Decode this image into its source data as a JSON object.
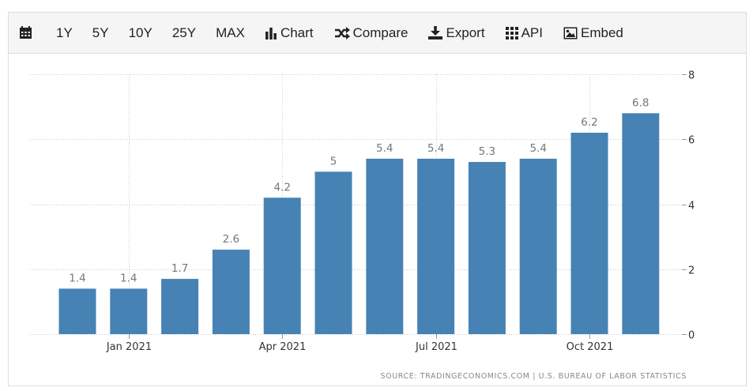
{
  "toolbar": {
    "ranges": [
      "1Y",
      "5Y",
      "10Y",
      "25Y",
      "MAX"
    ],
    "chart_label": "Chart",
    "compare_label": "Compare",
    "export_label": "Export",
    "api_label": "API",
    "embed_label": "Embed",
    "icons": {
      "calendar": "calendar-icon",
      "chart": "bar-chart-icon",
      "compare": "shuffle-icon",
      "export": "download-icon",
      "api": "grid-icon",
      "embed": "image-icon"
    }
  },
  "source": "SOURCE: TRADINGECONOMICS.COM | U.S. BUREAU OF LABOR STATISTICS",
  "colors": {
    "bar": "#4682b4",
    "grid": "#cccccc",
    "label": "#777777"
  },
  "chart_data": {
    "type": "bar",
    "x_tick_labels": [
      "Jan 2021",
      "Apr 2021",
      "Jul 2021",
      "Oct 2021"
    ],
    "values": [
      1.4,
      1.4,
      1.7,
      2.6,
      4.2,
      5,
      5.4,
      5.4,
      5.3,
      5.4,
      6.2,
      6.8
    ],
    "data_labels": [
      "1.4",
      "1.4",
      "1.7",
      "2.6",
      "4.2",
      "5",
      "5.4",
      "5.4",
      "5.3",
      "5.4",
      "6.2",
      "6.8"
    ],
    "ylim": [
      0,
      8
    ],
    "y_ticks": [
      0,
      2,
      4,
      6,
      8
    ],
    "y_axis_side": "right",
    "grid": true
  }
}
